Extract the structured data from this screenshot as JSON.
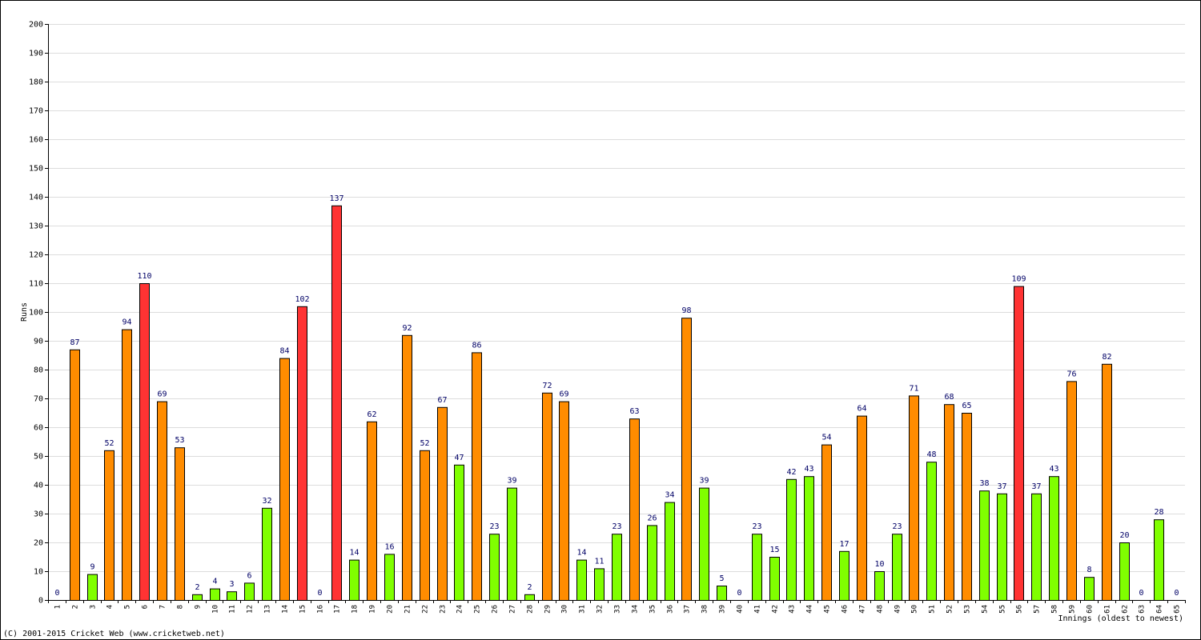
{
  "chart_data": {
    "type": "bar",
    "y_label": "Runs",
    "x_label": "Innings (oldest to newest)",
    "footer": "(C) 2001-2015 Cricket Web (www.cricketweb.net)",
    "categories": [
      "1",
      "2",
      "3",
      "4",
      "5",
      "6",
      "7",
      "8",
      "9",
      "10",
      "11",
      "12",
      "13",
      "14",
      "15",
      "16",
      "17",
      "18",
      "19",
      "20",
      "21",
      "22",
      "23",
      "24",
      "25",
      "26",
      "27",
      "28",
      "29",
      "30",
      "31",
      "32",
      "33",
      "34",
      "35",
      "36",
      "37",
      "38",
      "39",
      "40",
      "41",
      "42",
      "43",
      "44",
      "45",
      "46",
      "47",
      "48",
      "49",
      "50",
      "51",
      "52",
      "53",
      "54",
      "55",
      "56",
      "57",
      "58",
      "59",
      "60",
      "61",
      "62",
      "63",
      "64",
      "65"
    ],
    "values": [
      0,
      87,
      9,
      52,
      94,
      110,
      69,
      53,
      2,
      4,
      3,
      6,
      32,
      84,
      102,
      0,
      137,
      14,
      62,
      16,
      92,
      52,
      67,
      47,
      86,
      23,
      39,
      2,
      72,
      69,
      14,
      11,
      23,
      63,
      26,
      34,
      98,
      39,
      5,
      0,
      23,
      15,
      42,
      43,
      54,
      17,
      64,
      10,
      23,
      71,
      48,
      68,
      65,
      38,
      37,
      109,
      37,
      43,
      76,
      8,
      82,
      20,
      0,
      28,
      0
    ],
    "colors": [
      "#80ff00",
      "#ff8c00",
      "#80ff00",
      "#ff8c00",
      "#ff8c00",
      "#ff3333",
      "#ff8c00",
      "#ff8c00",
      "#80ff00",
      "#80ff00",
      "#80ff00",
      "#80ff00",
      "#80ff00",
      "#ff8c00",
      "#ff3333",
      "#80ff00",
      "#ff3333",
      "#80ff00",
      "#ff8c00",
      "#80ff00",
      "#ff8c00",
      "#ff8c00",
      "#ff8c00",
      "#80ff00",
      "#ff8c00",
      "#80ff00",
      "#80ff00",
      "#80ff00",
      "#ff8c00",
      "#ff8c00",
      "#80ff00",
      "#80ff00",
      "#80ff00",
      "#ff8c00",
      "#80ff00",
      "#80ff00",
      "#ff8c00",
      "#80ff00",
      "#80ff00",
      "#80ff00",
      "#80ff00",
      "#80ff00",
      "#80ff00",
      "#80ff00",
      "#ff8c00",
      "#80ff00",
      "#ff8c00",
      "#80ff00",
      "#80ff00",
      "#ff8c00",
      "#80ff00",
      "#ff8c00",
      "#ff8c00",
      "#80ff00",
      "#80ff00",
      "#ff3333",
      "#80ff00",
      "#80ff00",
      "#ff8c00",
      "#80ff00",
      "#ff8c00",
      "#80ff00",
      "#80ff00",
      "#80ff00",
      "#80ff00"
    ],
    "ylim": [
      0,
      200
    ],
    "yticks": [
      0,
      10,
      20,
      30,
      40,
      50,
      60,
      70,
      80,
      90,
      100,
      110,
      120,
      130,
      140,
      150,
      160,
      170,
      180,
      190,
      200
    ],
    "grid": true
  }
}
